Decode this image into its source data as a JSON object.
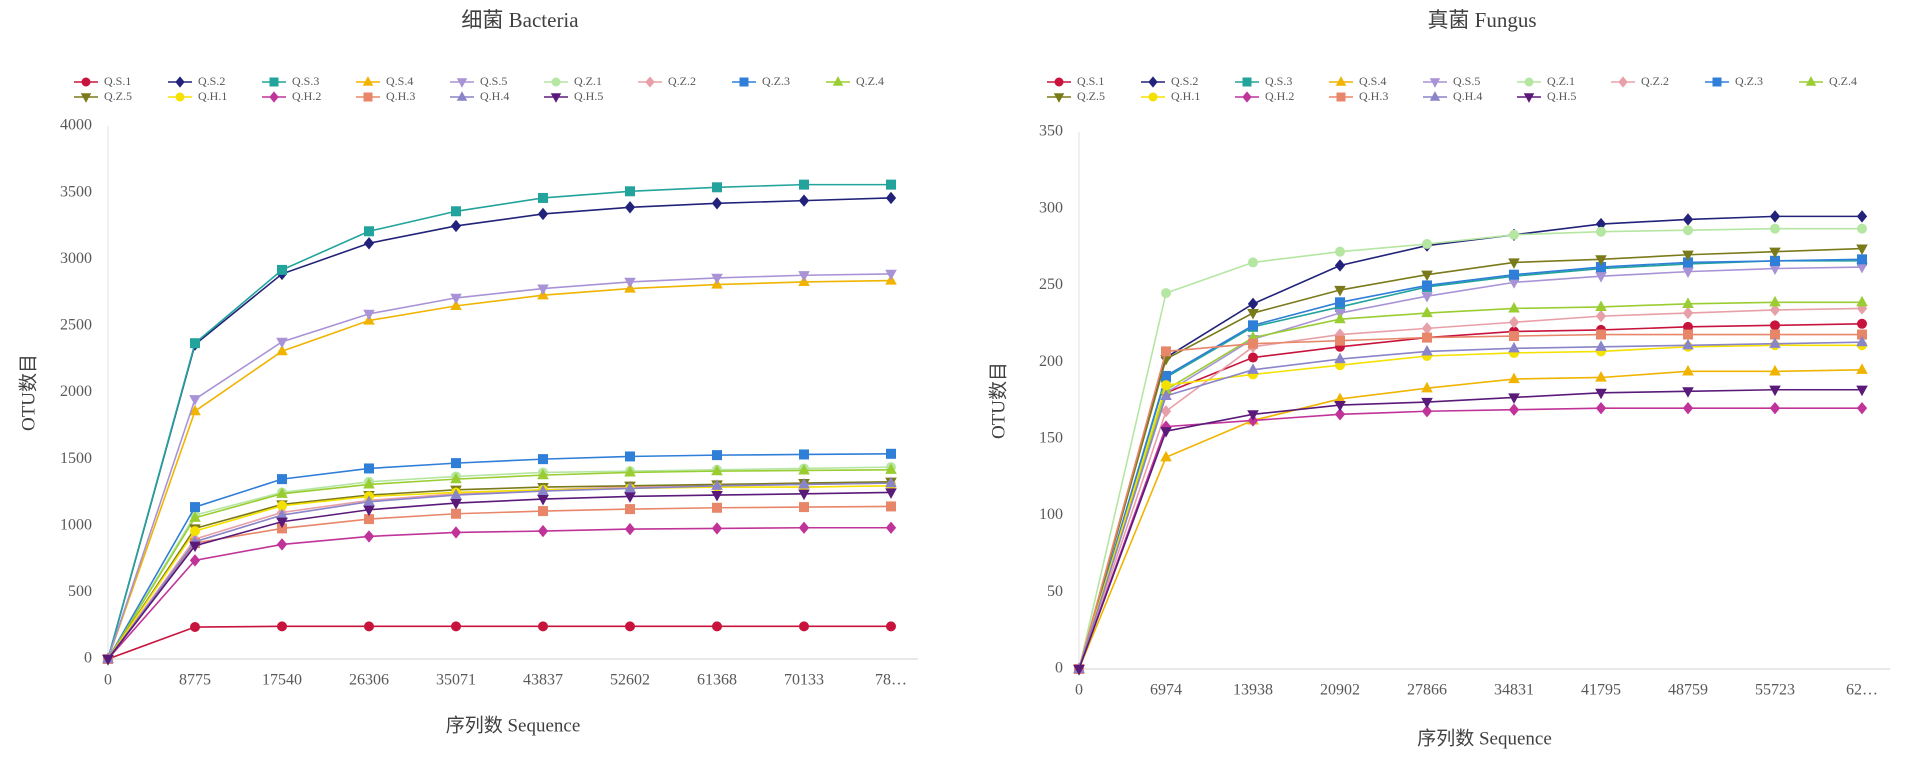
{
  "chart_data": [
    {
      "type": "line",
      "title": "细菌  Bacteria",
      "x_label": "序列数 Sequence",
      "y_label": "OTU数目",
      "categories": [
        "0",
        "8775",
        "17540",
        "26306",
        "35071",
        "43837",
        "52602",
        "61368",
        "70133",
        "78…"
      ],
      "ylim": [
        0,
        4000
      ],
      "yticks": [
        0,
        500,
        1000,
        1500,
        2000,
        2500,
        3000,
        3500,
        4000
      ],
      "grid": false,
      "legend": "top",
      "series": [
        {
          "name": "Q.S.1",
          "color": "#c8143c",
          "marker": "circle",
          "values": [
            0,
            240,
            245,
            245,
            245,
            245,
            245,
            245,
            245,
            245
          ]
        },
        {
          "name": "Q.S.2",
          "color": "#22227a",
          "marker": "diamond",
          "values": [
            0,
            2360,
            2890,
            3120,
            3250,
            3340,
            3390,
            3420,
            3440,
            3460
          ]
        },
        {
          "name": "Q.S.3",
          "color": "#22a39c",
          "marker": "square",
          "values": [
            0,
            2370,
            2920,
            3210,
            3360,
            3460,
            3510,
            3540,
            3560,
            3560
          ]
        },
        {
          "name": "Q.S.4",
          "color": "#f0b400",
          "marker": "triangle",
          "values": [
            0,
            1860,
            2310,
            2540,
            2650,
            2730,
            2780,
            2810,
            2830,
            2840
          ]
        },
        {
          "name": "Q.S.5",
          "color": "#a993d6",
          "marker": "triangle-down",
          "values": [
            0,
            1950,
            2380,
            2590,
            2710,
            2780,
            2830,
            2860,
            2880,
            2890
          ]
        },
        {
          "name": "Q.Z.1",
          "color": "#b5e6a2",
          "marker": "circle",
          "values": [
            0,
            1080,
            1250,
            1330,
            1370,
            1400,
            1410,
            1420,
            1430,
            1440
          ]
        },
        {
          "name": "Q.Z.2",
          "color": "#e8a0a8",
          "marker": "diamond",
          "values": [
            0,
            900,
            1100,
            1190,
            1240,
            1270,
            1290,
            1300,
            1310,
            1320
          ]
        },
        {
          "name": "Q.Z.3",
          "color": "#2f7ed8",
          "marker": "square",
          "values": [
            0,
            1140,
            1350,
            1430,
            1470,
            1500,
            1520,
            1530,
            1535,
            1540
          ]
        },
        {
          "name": "Q.Z.4",
          "color": "#9acd32",
          "marker": "triangle",
          "values": [
            0,
            1060,
            1240,
            1310,
            1350,
            1380,
            1400,
            1410,
            1415,
            1420
          ]
        },
        {
          "name": "Q.Z.5",
          "color": "#7a7a1a",
          "marker": "triangle-down",
          "values": [
            0,
            980,
            1160,
            1230,
            1270,
            1290,
            1300,
            1310,
            1320,
            1330
          ]
        },
        {
          "name": "Q.H.1",
          "color": "#f5e100",
          "marker": "circle",
          "values": [
            0,
            960,
            1150,
            1220,
            1250,
            1270,
            1280,
            1290,
            1290,
            1300
          ]
        },
        {
          "name": "Q.H.2",
          "color": "#c0349a",
          "marker": "diamond",
          "values": [
            0,
            740,
            860,
            920,
            950,
            960,
            975,
            980,
            985,
            985
          ]
        },
        {
          "name": "Q.H.3",
          "color": "#e8866a",
          "marker": "square",
          "values": [
            0,
            870,
            980,
            1050,
            1090,
            1110,
            1125,
            1135,
            1140,
            1145
          ]
        },
        {
          "name": "Q.H.4",
          "color": "#8a84c8",
          "marker": "triangle",
          "values": [
            0,
            880,
            1080,
            1180,
            1230,
            1260,
            1280,
            1300,
            1310,
            1320
          ]
        },
        {
          "name": "Q.H.5",
          "color": "#5a1a7a",
          "marker": "triangle-down",
          "values": [
            0,
            850,
            1030,
            1120,
            1170,
            1200,
            1220,
            1230,
            1240,
            1250
          ]
        }
      ]
    },
    {
      "type": "line",
      "title": "真菌 Fungus",
      "x_label": "序列数 Sequence",
      "y_label": "OTU数目",
      "categories": [
        "0",
        "6974",
        "13938",
        "20902",
        "27866",
        "34831",
        "41795",
        "48759",
        "55723",
        "62…"
      ],
      "ylim": [
        0,
        350
      ],
      "yticks": [
        0,
        50,
        100,
        150,
        200,
        250,
        300,
        350
      ],
      "grid": false,
      "legend": "top",
      "series": [
        {
          "name": "Q.S.1",
          "color": "#c8143c",
          "marker": "circle",
          "values": [
            0,
            180,
            203,
            210,
            216,
            220,
            221,
            223,
            224,
            225
          ]
        },
        {
          "name": "Q.S.2",
          "color": "#22227a",
          "marker": "diamond",
          "values": [
            0,
            203,
            238,
            263,
            276,
            283,
            290,
            293,
            295,
            295
          ]
        },
        {
          "name": "Q.S.3",
          "color": "#22a39c",
          "marker": "square",
          "values": [
            0,
            190,
            223,
            236,
            249,
            256,
            261,
            264,
            266,
            266
          ]
        },
        {
          "name": "Q.S.4",
          "color": "#f0b400",
          "marker": "triangle",
          "values": [
            0,
            138,
            162,
            176,
            183,
            189,
            190,
            194,
            194,
            195
          ]
        },
        {
          "name": "Q.S.5",
          "color": "#a993d6",
          "marker": "triangle-down",
          "values": [
            0,
            180,
            215,
            232,
            243,
            252,
            256,
            259,
            261,
            262
          ]
        },
        {
          "name": "Q.Z.1",
          "color": "#b5e6a2",
          "marker": "circle",
          "values": [
            0,
            245,
            265,
            272,
            277,
            283,
            285,
            286,
            287,
            287
          ]
        },
        {
          "name": "Q.Z.2",
          "color": "#e8a0a8",
          "marker": "diamond",
          "values": [
            0,
            168,
            210,
            218,
            222,
            226,
            230,
            232,
            234,
            235
          ]
        },
        {
          "name": "Q.Z.3",
          "color": "#2f7ed8",
          "marker": "square",
          "values": [
            0,
            191,
            224,
            239,
            250,
            257,
            262,
            265,
            266,
            267
          ]
        },
        {
          "name": "Q.Z.4",
          "color": "#9acd32",
          "marker": "triangle",
          "values": [
            0,
            182,
            216,
            228,
            232,
            235,
            236,
            238,
            239,
            239
          ]
        },
        {
          "name": "Q.Z.5",
          "color": "#7a7a1a",
          "marker": "triangle-down",
          "values": [
            0,
            202,
            232,
            247,
            257,
            265,
            267,
            270,
            272,
            274
          ]
        },
        {
          "name": "Q.H.1",
          "color": "#f5e100",
          "marker": "circle",
          "values": [
            0,
            185,
            192,
            198,
            204,
            206,
            207,
            210,
            211,
            211
          ]
        },
        {
          "name": "Q.H.2",
          "color": "#c0349a",
          "marker": "diamond",
          "values": [
            0,
            158,
            162,
            166,
            168,
            169,
            170,
            170,
            170,
            170
          ]
        },
        {
          "name": "Q.H.3",
          "color": "#e8866a",
          "marker": "square",
          "values": [
            0,
            207,
            212,
            214,
            216,
            217,
            218,
            218,
            218,
            218
          ]
        },
        {
          "name": "Q.H.4",
          "color": "#8a84c8",
          "marker": "triangle",
          "values": [
            0,
            178,
            195,
            202,
            207,
            209,
            210,
            211,
            212,
            213
          ]
        },
        {
          "name": "Q.H.5",
          "color": "#5a1a7a",
          "marker": "triangle-down",
          "values": [
            0,
            155,
            166,
            172,
            174,
            177,
            180,
            181,
            182,
            182
          ]
        }
      ]
    }
  ]
}
